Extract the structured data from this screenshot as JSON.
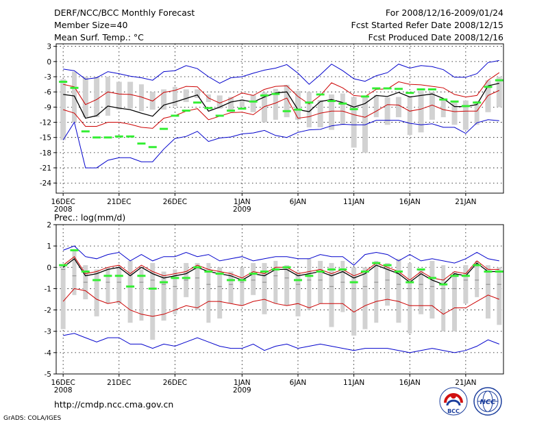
{
  "header": {
    "title": "DERF/NCC/BCC Monthly Forecast",
    "member_size": "Member Size=40",
    "variable": "Mean Surf. Temp.: °C",
    "period": "For 2008/12/16-2009/01/24",
    "started": "Fcst Started Refer Date 2008/12/15",
    "produced": "Fcst Produced Date 2008/12/16"
  },
  "footer": {
    "url": "http://cmdp.ncc.cma.gov.cn",
    "credit": "GrADS: COLA/IGES",
    "logo_bcc": "BCC",
    "logo_ncc": "NCC"
  },
  "colors": {
    "envelope": "#0000cc",
    "spread": "#cc0000",
    "mean": "#000000",
    "observed": "#33ee33",
    "box": "#d2d2d2"
  },
  "chart_data": [
    {
      "type": "box",
      "title": "Mean Surf. Temp.: °C",
      "xlabel": "",
      "ylabel": "",
      "ylim": [
        -26,
        3.5
      ],
      "yticks": [
        3,
        0,
        -3,
        -6,
        -9,
        -12,
        -15,
        -18,
        -21,
        -24
      ],
      "ytick_labels": [
        "3",
        "0",
        "-3",
        "-6",
        "-9",
        "-12",
        "-15",
        "-18",
        "-21",
        "-24"
      ],
      "x_days": [
        1,
        40
      ],
      "xticks": [
        {
          "day": 1,
          "label": "16DEC",
          "sub": "2008"
        },
        {
          "day": 6,
          "label": "21DEC",
          "sub": ""
        },
        {
          "day": 11,
          "label": "26DEC",
          "sub": ""
        },
        {
          "day": 17,
          "label": "1JAN",
          "sub": "2009"
        },
        {
          "day": 22,
          "label": "6JAN",
          "sub": ""
        },
        {
          "day": 27,
          "label": "11JAN",
          "sub": ""
        },
        {
          "day": 32,
          "label": "16JAN",
          "sub": ""
        },
        {
          "day": 37,
          "label": "21JAN",
          "sub": ""
        }
      ],
      "series": [
        {
          "name": "ensemble max",
          "values": [
            -15.5,
            -12.0,
            -11.0,
            -11.0,
            -10.7,
            -9.5,
            -9.3,
            -9.8,
            -9.5,
            -9.5,
            -8.8,
            -8.0,
            -7.2,
            -6.5,
            -6.7,
            -7.0,
            -7.5,
            -6.6,
            -6.1,
            -5.4,
            -4.6,
            -5.8,
            -6.0,
            -7.6,
            -6.5,
            -6.3,
            -7.0,
            -6.8,
            -6.6,
            -7.1,
            -7.0,
            -6.8,
            -5.8,
            -6.0,
            -7.6,
            -7.8,
            -7.7,
            -7.8,
            -3.7,
            -3.0
          ]
        },
        {
          "name": "ensemble min",
          "values": [
            -3.5,
            -2.0,
            -3.0,
            -3.0,
            -3.0,
            -4.0,
            -4.0,
            -4.5,
            -6.0,
            -5.5,
            -5.0,
            -5.5,
            -5.5,
            -8.0,
            -9.3,
            -10.0,
            -9.0,
            -10.0,
            -12.0,
            -11.5,
            -11.0,
            -11.5,
            -13.0,
            -13.0,
            -13.5,
            -12.5,
            -17.0,
            -18.0,
            -11.0,
            -12.5,
            -11.0,
            -14.5,
            -14.0,
            -11.5,
            -11.0,
            -12.5,
            -13.5,
            -12.5,
            -10.0,
            -9.0
          ]
        },
        {
          "name": "observed",
          "values": [
            -4.0,
            -5.2,
            -13.8,
            -15.0,
            -15.0,
            -14.8,
            -14.8,
            -16.2,
            -16.9,
            -13.3,
            -10.7,
            -9.7,
            -8.1,
            -9.2,
            -10.7,
            -9.7,
            -9.3,
            -7.9,
            -6.7,
            -6.4,
            -9.8,
            -9.5,
            -8.1,
            -6.5,
            -7.8,
            -8.3,
            -9.4,
            -6.9,
            -5.3,
            -5.3,
            -5.4,
            -6.2,
            -5.5,
            -5.5,
            -7.5,
            -7.9,
            -8.8,
            -8.1,
            -5.0,
            -3.7
          ]
        }
      ],
      "lines": [
        {
          "name": "upper envelope",
          "role": "envelope",
          "values": [
            -1.5,
            -1.8,
            -3.5,
            -3.2,
            -2.0,
            -2.4,
            -2.9,
            -3.2,
            -3.7,
            -2.0,
            -1.8,
            -0.8,
            -1.4,
            -3.0,
            -4.3,
            -3.2,
            -3.0,
            -2.3,
            -1.7,
            -1.3,
            -0.6,
            -2.3,
            -4.5,
            -2.6,
            -0.5,
            -1.8,
            -3.4,
            -3.9,
            -2.8,
            -2.2,
            -0.5,
            -1.3,
            -0.8,
            -1.0,
            -1.6,
            -3.1,
            -3.1,
            -2.4,
            -0.2,
            0.2
          ]
        },
        {
          "name": "upper spread",
          "role": "spread",
          "values": [
            -4.5,
            -5.0,
            -8.5,
            -7.5,
            -6.0,
            -6.4,
            -6.5,
            -7.0,
            -7.8,
            -6.1,
            -5.7,
            -4.9,
            -5.0,
            -7.2,
            -8.2,
            -7.3,
            -6.2,
            -6.7,
            -5.5,
            -4.9,
            -4.8,
            -6.9,
            -8.4,
            -6.7,
            -4.2,
            -5.2,
            -6.7,
            -6.9,
            -5.5,
            -5.4,
            -4.0,
            -4.5,
            -4.6,
            -4.9,
            -5.2,
            -6.5,
            -7.0,
            -6.7,
            -3.7,
            -2.2
          ]
        },
        {
          "name": "ensemble mean",
          "role": "mean",
          "values": [
            -6.5,
            -6.8,
            -11.2,
            -10.7,
            -8.8,
            -9.2,
            -9.5,
            -10.2,
            -10.8,
            -8.6,
            -8.0,
            -7.3,
            -6.6,
            -9.8,
            -9.0,
            -8.0,
            -7.6,
            -8.0,
            -7.0,
            -6.2,
            -6.0,
            -9.5,
            -9.9,
            -7.9,
            -7.5,
            -8.1,
            -9.0,
            -8.3,
            -6.7,
            -6.9,
            -6.1,
            -7.0,
            -6.7,
            -6.4,
            -7.3,
            -8.9,
            -8.9,
            -8.5,
            -4.8,
            -4.3
          ]
        },
        {
          "name": "lower spread",
          "role": "spread",
          "values": [
            -9.5,
            -10.2,
            -12.8,
            -12.8,
            -12.0,
            -12.0,
            -12.4,
            -13.0,
            -13.2,
            -11.2,
            -10.7,
            -9.8,
            -9.3,
            -11.5,
            -10.8,
            -10.1,
            -10.0,
            -10.5,
            -8.9,
            -8.2,
            -7.2,
            -11.2,
            -10.9,
            -10.2,
            -9.8,
            -9.8,
            -10.5,
            -11.0,
            -9.8,
            -8.5,
            -8.6,
            -9.8,
            -9.4,
            -8.6,
            -9.5,
            -9.9,
            -9.8,
            -9.8,
            -6.7,
            -5.7
          ]
        },
        {
          "name": "lower envelope",
          "role": "envelope",
          "values": [
            -15.5,
            -12.0,
            -21.0,
            -21.0,
            -19.5,
            -19.0,
            -19.0,
            -19.8,
            -19.8,
            -17.3,
            -15.2,
            -14.8,
            -13.8,
            -15.8,
            -15.1,
            -14.9,
            -14.3,
            -14.1,
            -13.6,
            -14.6,
            -15.0,
            -14.0,
            -13.5,
            -13.4,
            -12.7,
            -12.4,
            -12.5,
            -12.5,
            -11.6,
            -11.6,
            -11.6,
            -12.2,
            -12.5,
            -12.3,
            -13.0,
            -13.0,
            -14.2,
            -12.1,
            -11.5,
            -11.7
          ]
        }
      ]
    },
    {
      "type": "box",
      "title": "Prec.: log(mm/d)",
      "xlabel": "",
      "ylabel": "",
      "ylim": [
        -5,
        2
      ],
      "yticks": [
        2,
        1,
        0,
        -1,
        -2,
        -3,
        -4,
        -5
      ],
      "ytick_labels": [
        "2",
        "1",
        "0",
        "-1",
        "-2",
        "-3",
        "-4",
        "-5"
      ],
      "x_days": [
        1,
        40
      ],
      "xticks": [
        {
          "day": 1,
          "label": "16DEC",
          "sub": "2008"
        },
        {
          "day": 6,
          "label": "21DEC",
          "sub": ""
        },
        {
          "day": 11,
          "label": "26DEC",
          "sub": ""
        },
        {
          "day": 17,
          "label": "1JAN",
          "sub": "2009"
        },
        {
          "day": 22,
          "label": "6JAN",
          "sub": ""
        },
        {
          "day": 27,
          "label": "11JAN",
          "sub": ""
        },
        {
          "day": 32,
          "label": "16JAN",
          "sub": ""
        },
        {
          "day": 37,
          "label": "21JAN",
          "sub": ""
        }
      ],
      "series": [
        {
          "name": "ensemble max",
          "values": [
            -2.9,
            -1.3,
            -1.5,
            -2.3,
            -1.7,
            -1.7,
            -2.6,
            -2.5,
            -3.4,
            -2.5,
            -2.2,
            -1.4,
            -2.0,
            -2.6,
            -2.4,
            -1.7,
            -1.8,
            -1.3,
            -2.2,
            -1.7,
            -1.8,
            -2.3,
            -2.0,
            -1.7,
            -2.8,
            -2.1,
            -3.2,
            -2.9,
            -2.6,
            -1.8,
            -2.6,
            -3.1,
            -2.2,
            -2.4,
            -3.0,
            -3.0,
            -1.7,
            -1.4,
            -2.4,
            -2.7
          ]
        },
        {
          "name": "ensemble min",
          "values": [
            0.1,
            0.8,
            0.1,
            -0.1,
            0.0,
            0.0,
            0.3,
            -0.1,
            0.2,
            -0.2,
            -0.1,
            0.2,
            0.2,
            0.2,
            0.0,
            -0.2,
            0.0,
            0.2,
            0.2,
            0.3,
            0.1,
            -0.2,
            0.4,
            0.3,
            0.2,
            0.3,
            0.0,
            0.0,
            0.3,
            0.2,
            0.4,
            0.2,
            -0.1,
            0.3,
            0.1,
            -0.2,
            0.1,
            0.3,
            0.1,
            0.0
          ]
        },
        {
          "name": "observed",
          "values": [
            0.1,
            0.8,
            -0.2,
            -0.6,
            -0.4,
            -0.4,
            -0.9,
            -0.4,
            -1.0,
            -0.7,
            -0.5,
            -0.5,
            0.0,
            -0.2,
            -0.3,
            -0.6,
            -0.6,
            -0.3,
            -0.2,
            -0.1,
            0.0,
            -0.6,
            -0.4,
            -0.2,
            -0.1,
            -0.1,
            -0.7,
            -0.2,
            0.2,
            0.1,
            -0.2,
            -0.7,
            -0.1,
            -0.5,
            -0.8,
            -0.4,
            -0.4,
            0.1,
            -0.2,
            -0.2
          ]
        },
        {
          "name": "ensemble median",
          "values": [
            -0.1,
            -0.4,
            -0.7,
            -0.6,
            -0.7,
            -0.7,
            -0.9,
            -0.7,
            -0.6,
            -0.8,
            -0.9,
            -0.6,
            -0.5,
            -0.8,
            -0.9,
            -0.8,
            -0.7,
            -0.6,
            -0.7,
            -0.4,
            -0.5,
            -0.8,
            -0.6,
            -0.6,
            -0.9,
            -0.7,
            -1.0,
            -0.9,
            -0.7,
            -0.6,
            -0.8,
            -1.0,
            -0.8,
            -0.9,
            -1.0,
            -1.0,
            -0.6,
            -0.6,
            -0.8,
            -0.8
          ]
        }
      ],
      "lines": [
        {
          "name": "upper envelope",
          "role": "envelope",
          "values": [
            0.8,
            1.0,
            0.5,
            0.4,
            0.6,
            0.7,
            0.3,
            0.6,
            0.3,
            0.5,
            0.5,
            0.7,
            0.5,
            0.6,
            0.3,
            0.4,
            0.5,
            0.3,
            0.4,
            0.5,
            0.5,
            0.4,
            0.4,
            0.6,
            0.5,
            0.5,
            0.1,
            0.6,
            0.7,
            0.6,
            0.3,
            0.6,
            0.3,
            0.4,
            0.3,
            0.2,
            0.4,
            0.7,
            0.4,
            0.3
          ]
        },
        {
          "name": "upper spread",
          "role": "spread",
          "values": [
            0.1,
            0.5,
            -0.3,
            -0.2,
            0.0,
            0.1,
            -0.3,
            0.1,
            -0.2,
            -0.4,
            -0.3,
            -0.2,
            0.1,
            -0.1,
            -0.2,
            -0.3,
            -0.5,
            -0.2,
            -0.3,
            0.0,
            0.0,
            -0.3,
            -0.2,
            -0.1,
            -0.3,
            -0.1,
            -0.4,
            -0.2,
            0.2,
            0.0,
            -0.2,
            -0.6,
            -0.2,
            -0.5,
            -0.6,
            -0.2,
            -0.3,
            0.3,
            -0.1,
            -0.1
          ]
        },
        {
          "name": "ensemble mean",
          "role": "mean",
          "values": [
            0.0,
            0.4,
            -0.4,
            -0.3,
            -0.1,
            0.0,
            -0.4,
            0.0,
            -0.3,
            -0.5,
            -0.4,
            -0.3,
            0.0,
            -0.2,
            -0.3,
            -0.4,
            -0.6,
            -0.3,
            -0.4,
            -0.1,
            -0.1,
            -0.4,
            -0.3,
            -0.2,
            -0.4,
            -0.2,
            -0.5,
            -0.3,
            0.1,
            -0.1,
            -0.3,
            -0.7,
            -0.3,
            -0.6,
            -0.8,
            -0.3,
            -0.4,
            0.2,
            -0.2,
            -0.2
          ]
        },
        {
          "name": "lower spread",
          "role": "spread",
          "values": [
            -1.6,
            -1.0,
            -1.1,
            -1.5,
            -1.7,
            -1.6,
            -2.0,
            -2.2,
            -2.3,
            -2.2,
            -2.0,
            -1.8,
            -1.9,
            -1.6,
            -1.6,
            -1.7,
            -1.8,
            -1.6,
            -1.5,
            -1.7,
            -1.8,
            -1.7,
            -1.9,
            -1.7,
            -1.7,
            -1.7,
            -2.1,
            -1.8,
            -1.6,
            -1.5,
            -1.6,
            -1.8,
            -1.8,
            -1.8,
            -2.2,
            -1.9,
            -1.9,
            -1.6,
            -1.3,
            -1.5
          ]
        },
        {
          "name": "lower envelope",
          "role": "envelope",
          "values": [
            -3.2,
            -3.1,
            -3.3,
            -3.5,
            -3.3,
            -3.3,
            -3.6,
            -3.6,
            -3.8,
            -3.6,
            -3.7,
            -3.5,
            -3.3,
            -3.5,
            -3.7,
            -3.8,
            -3.8,
            -3.6,
            -3.9,
            -3.7,
            -3.6,
            -3.8,
            -3.7,
            -3.6,
            -3.7,
            -3.8,
            -3.9,
            -3.8,
            -3.8,
            -3.8,
            -3.9,
            -4.0,
            -3.9,
            -3.8,
            -3.9,
            -4.0,
            -3.9,
            -3.7,
            -3.4,
            -3.6
          ]
        }
      ]
    }
  ]
}
